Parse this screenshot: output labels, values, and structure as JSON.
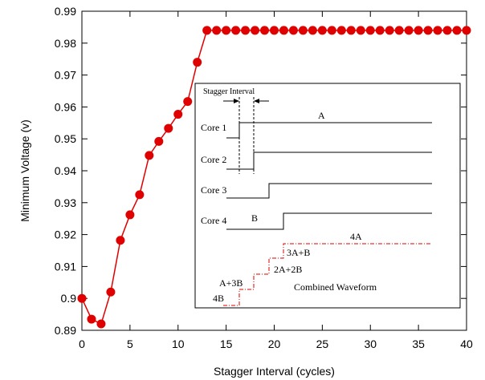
{
  "chart_data": {
    "type": "line",
    "title": "",
    "xlabel": "Stagger Interval (cycles)",
    "ylabel": "Minimum Voltage (v)",
    "xlim": [
      0,
      40
    ],
    "ylim": [
      0.89,
      0.99
    ],
    "xticks": [
      0,
      5,
      10,
      15,
      20,
      25,
      30,
      35,
      40
    ],
    "yticks": [
      0.89,
      0.9,
      0.91,
      0.92,
      0.93,
      0.94,
      0.95,
      0.96,
      0.97,
      0.98,
      0.99
    ],
    "xtick_labels": [
      "0",
      "5",
      "10",
      "15",
      "20",
      "25",
      "30",
      "35",
      "40"
    ],
    "ytick_labels": [
      "0.89",
      "0.9",
      "0.91",
      "0.92",
      "0.93",
      "0.94",
      "0.95",
      "0.96",
      "0.97",
      "0.98",
      "0.99"
    ],
    "grid": false,
    "series": [
      {
        "color": "#e00000",
        "marker": "circle",
        "x": [
          0,
          1,
          2,
          3,
          4,
          5,
          6,
          7,
          8,
          9,
          10,
          11,
          12,
          13,
          14,
          15,
          16,
          17,
          18,
          19,
          20,
          21,
          22,
          23,
          24,
          25,
          26,
          27,
          28,
          29,
          30,
          31,
          32,
          33,
          34,
          35,
          36,
          37,
          38,
          39,
          40
        ],
        "y": [
          0.9,
          0.8935,
          0.892,
          0.902,
          0.9182,
          0.9262,
          0.9325,
          0.9448,
          0.9492,
          0.9533,
          0.9577,
          0.9617,
          0.974,
          0.984,
          0.984,
          0.984,
          0.984,
          0.984,
          0.984,
          0.984,
          0.984,
          0.984,
          0.984,
          0.984,
          0.984,
          0.984,
          0.984,
          0.984,
          0.984,
          0.984,
          0.984,
          0.984,
          0.984,
          0.984,
          0.984,
          0.984,
          0.984,
          0.984,
          0.984,
          0.984,
          0.984
        ]
      }
    ],
    "inset": {
      "stagger_label": "Stagger Interval",
      "cores": [
        "Core 1",
        "Core 2",
        "Core 3",
        "Core 4"
      ],
      "waveform_labels": [
        "A",
        "B"
      ],
      "combined_steps": [
        "4B",
        "A+3B",
        "2A+2B",
        "3A+B",
        "4A"
      ],
      "combined_title": "Combined Waveform"
    }
  }
}
